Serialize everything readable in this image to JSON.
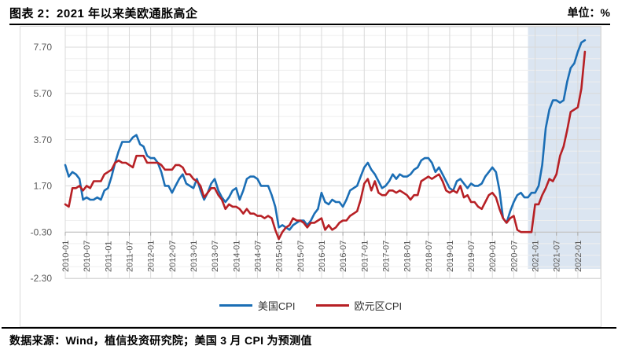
{
  "header": {
    "title": "图表 2：2021 年以来美欧通胀高企",
    "unit_label": "单位：%"
  },
  "footer": {
    "source_note": "数据来源：Wind，植信投资研究院；美国 3 月 CPI 为预测值"
  },
  "chart_data": {
    "type": "line",
    "title": "图表 2：2021 年以来美欧通胀高企",
    "unit": "%",
    "x_start": "2010-01",
    "x_end": "2022-03",
    "n_points": 147,
    "x_ticks": [
      "2010-01",
      "2010-07",
      "2011-01",
      "2011-07",
      "2012-01",
      "2012-07",
      "2013-01",
      "2013-07",
      "2014-01",
      "2014-07",
      "2015-01",
      "2015-07",
      "2016-01",
      "2016-07",
      "2017-01",
      "2017-07",
      "2018-01",
      "2018-07",
      "2019-01",
      "2019-07",
      "2020-01",
      "2020-07",
      "2021-01",
      "2021-07",
      "2022-01"
    ],
    "x_tick_every_months": 6,
    "yticks": [
      7.7,
      5.7,
      3.7,
      1.7,
      -0.3,
      -2.3
    ],
    "ytick_labels": [
      "7.70",
      "5.70",
      "3.70",
      "1.70",
      "-0.30",
      "-2.30"
    ],
    "ylim": [
      -2.3,
      8.58
    ],
    "major_unit": 2.0,
    "minor_unit": 0.5,
    "grid": true,
    "axis_cross_y": -0.3,
    "legend_position": "bottom",
    "highlight_band": {
      "from": "2021-01",
      "to": "2022-03",
      "color": "#dbe5f1"
    },
    "series": [
      {
        "name": "美国CPI",
        "color": "#1b6eb5",
        "values": [
          2.6,
          2.1,
          2.3,
          2.2,
          2.0,
          1.1,
          1.2,
          1.1,
          1.1,
          1.2,
          1.1,
          1.5,
          1.6,
          2.1,
          2.7,
          3.2,
          3.6,
          3.6,
          3.6,
          3.8,
          3.9,
          3.5,
          3.4,
          3.0,
          2.9,
          2.9,
          2.7,
          2.3,
          1.7,
          1.7,
          1.4,
          1.7,
          2.0,
          2.2,
          1.8,
          1.7,
          1.6,
          2.0,
          1.5,
          1.1,
          1.4,
          1.8,
          2.0,
          1.5,
          1.2,
          1.0,
          1.2,
          1.5,
          1.6,
          1.1,
          1.5,
          2.0,
          2.1,
          2.1,
          2.0,
          1.7,
          1.7,
          1.7,
          1.3,
          0.8,
          -0.1,
          0.0,
          -0.1,
          -0.2,
          0.0,
          0.1,
          0.2,
          0.2,
          0.0,
          0.2,
          0.5,
          0.7,
          1.4,
          1.0,
          0.9,
          1.1,
          1.0,
          1.0,
          0.8,
          1.1,
          1.5,
          1.6,
          1.7,
          2.1,
          2.5,
          2.7,
          2.4,
          2.2,
          1.9,
          1.6,
          1.7,
          1.9,
          2.2,
          2.0,
          2.2,
          2.1,
          2.1,
          2.2,
          2.4,
          2.5,
          2.8,
          2.9,
          2.9,
          2.7,
          2.3,
          2.5,
          2.2,
          1.9,
          1.6,
          1.5,
          1.9,
          2.0,
          1.8,
          1.6,
          1.8,
          1.7,
          1.7,
          1.8,
          2.1,
          2.3,
          2.5,
          2.3,
          1.5,
          0.3,
          0.1,
          0.6,
          1.0,
          1.3,
          1.4,
          1.2,
          1.2,
          1.4,
          1.4,
          1.7,
          2.6,
          4.2,
          5.0,
          5.4,
          5.4,
          5.3,
          5.4,
          6.2,
          6.8,
          7.0,
          7.5,
          7.9,
          8.0
        ]
      },
      {
        "name": "欧元区CPI",
        "color": "#b72025",
        "values": [
          0.9,
          0.8,
          1.6,
          1.6,
          1.7,
          1.5,
          1.7,
          1.6,
          1.9,
          1.9,
          1.9,
          2.2,
          2.3,
          2.4,
          2.7,
          2.8,
          2.7,
          2.7,
          2.6,
          2.5,
          3.0,
          3.0,
          3.0,
          2.7,
          2.7,
          2.7,
          2.7,
          2.6,
          2.4,
          2.4,
          2.4,
          2.6,
          2.6,
          2.5,
          2.2,
          2.2,
          2.0,
          1.9,
          1.7,
          1.2,
          1.4,
          1.6,
          1.6,
          1.3,
          1.1,
          0.7,
          0.9,
          0.8,
          0.8,
          0.7,
          0.5,
          0.7,
          0.5,
          0.5,
          0.4,
          0.4,
          0.3,
          0.4,
          0.3,
          -0.2,
          -0.6,
          -0.3,
          -0.1,
          0.0,
          0.3,
          0.2,
          0.2,
          0.1,
          -0.1,
          0.1,
          0.1,
          0.2,
          0.3,
          -0.2,
          0.0,
          -0.2,
          -0.1,
          0.1,
          0.2,
          0.2,
          0.4,
          0.5,
          0.6,
          1.1,
          1.8,
          2.0,
          1.5,
          1.9,
          1.4,
          1.3,
          1.3,
          1.5,
          1.5,
          1.4,
          1.5,
          1.4,
          1.3,
          1.1,
          1.3,
          1.3,
          1.9,
          2.0,
          2.1,
          2.0,
          2.1,
          2.2,
          1.9,
          1.5,
          1.4,
          1.5,
          1.4,
          1.7,
          1.2,
          1.3,
          1.0,
          1.0,
          0.8,
          0.7,
          1.0,
          1.3,
          1.4,
          1.2,
          0.7,
          0.3,
          0.1,
          0.3,
          0.4,
          -0.2,
          -0.3,
          -0.3,
          -0.3,
          -0.3,
          0.9,
          0.9,
          1.3,
          1.6,
          2.0,
          1.9,
          2.2,
          3.0,
          3.4,
          4.1,
          4.9,
          5.0,
          5.1,
          5.9,
          7.5
        ]
      }
    ],
    "colors": {
      "us_line": "#1b6eb5",
      "eurozone_line": "#b72025",
      "highlight_band": "#dbe5f1",
      "major_grid": "#d9d9d9",
      "minor_grid": "#efefef",
      "axis_line": "#bfbfbf",
      "tick_label": "#595959"
    }
  },
  "legend": {
    "items": [
      {
        "label": "美国CPI"
      },
      {
        "label": "欧元区CPI"
      }
    ]
  }
}
